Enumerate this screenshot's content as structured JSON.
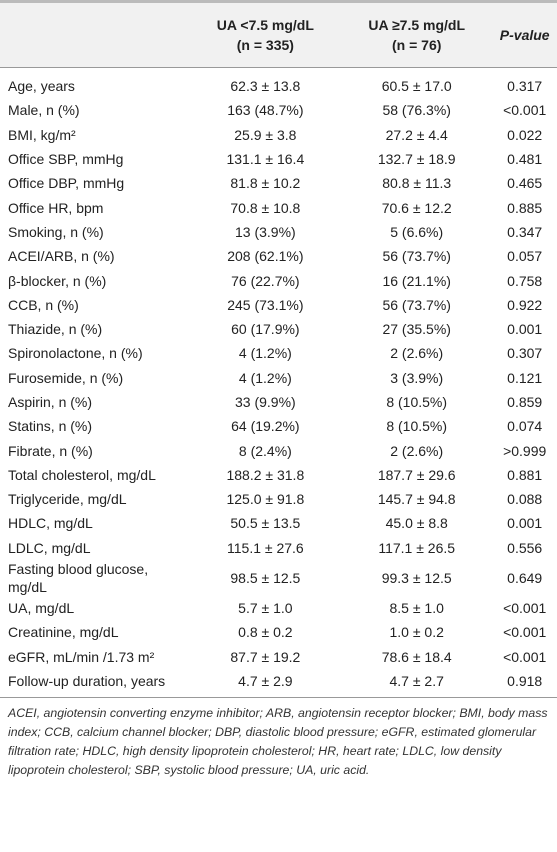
{
  "table": {
    "header": [
      {
        "line1": "UA <7.5 mg/dL",
        "line2": "(n = 335)"
      },
      {
        "line1": "UA ≥7.5 mg/dL",
        "line2": "(n = 76)"
      },
      {
        "line1": "P-value"
      }
    ],
    "rows": [
      [
        "Age, years",
        "62.3 ± 13.8",
        "60.5 ± 17.0",
        "0.317"
      ],
      [
        "Male, n (%)",
        "163 (48.7%)",
        "58 (76.3%)",
        "<0.001"
      ],
      [
        "BMI, kg/m²",
        "25.9 ± 3.8",
        "27.2 ± 4.4",
        "0.022"
      ],
      [
        "Office SBP, mmHg",
        "131.1 ± 16.4",
        "132.7 ± 18.9",
        "0.481"
      ],
      [
        "Office DBP, mmHg",
        "81.8 ± 10.2",
        "80.8 ± 11.3",
        "0.465"
      ],
      [
        "Office HR, bpm",
        "70.8 ± 10.8",
        "70.6 ± 12.2",
        "0.885"
      ],
      [
        "Smoking, n (%)",
        "13 (3.9%)",
        "5 (6.6%)",
        "0.347"
      ],
      [
        "ACEI/ARB, n (%)",
        "208 (62.1%)",
        "56 (73.7%)",
        "0.057"
      ],
      [
        "β-blocker, n (%)",
        "76 (22.7%)",
        "16 (21.1%)",
        "0.758"
      ],
      [
        "CCB, n (%)",
        "245 (73.1%)",
        "56 (73.7%)",
        "0.922"
      ],
      [
        "Thiazide, n (%)",
        "60 (17.9%)",
        "27 (35.5%)",
        "0.001"
      ],
      [
        "Spironolactone, n (%)",
        "4 (1.2%)",
        "2 (2.6%)",
        "0.307"
      ],
      [
        "Furosemide, n (%)",
        "4 (1.2%)",
        "3 (3.9%)",
        "0.121"
      ],
      [
        "Aspirin, n (%)",
        "33 (9.9%)",
        "8 (10.5%)",
        "0.859"
      ],
      [
        "Statins, n (%)",
        "64 (19.2%)",
        "8 (10.5%)",
        "0.074"
      ],
      [
        "Fibrate, n (%)",
        "8 (2.4%)",
        "2 (2.6%)",
        ">0.999"
      ],
      [
        "Total cholesterol, mg/dL",
        "188.2 ± 31.8",
        "187.7 ± 29.6",
        "0.881"
      ],
      [
        "Triglyceride, mg/dL",
        "125.0 ± 91.8",
        "145.7 ± 94.8",
        "0.088"
      ],
      [
        "HDLC, mg/dL",
        "50.5 ± 13.5",
        "45.0 ± 8.8",
        "0.001"
      ],
      [
        "LDLC, mg/dL",
        "115.1 ± 27.6",
        "117.1 ± 26.5",
        "0.556"
      ],
      [
        "Fasting blood glucose, mg/dL",
        "98.5 ± 12.5",
        "99.3 ± 12.5",
        "0.649"
      ],
      [
        "UA, mg/dL",
        "5.7 ± 1.0",
        "8.5 ± 1.0",
        "<0.001"
      ],
      [
        "Creatinine, mg/dL",
        "0.8 ± 0.2",
        "1.0 ± 0.2",
        "<0.001"
      ],
      [
        "eGFR, mL/min /1.73 m²",
        "87.7 ± 19.2",
        "78.6 ± 18.4",
        "<0.001"
      ],
      [
        "Follow-up duration, years",
        "4.7 ± 2.9",
        "4.7 ± 2.7",
        "0.918"
      ]
    ]
  },
  "footnote": "ACEI, angiotensin converting enzyme inhibitor; ARB, angiotensin receptor blocker; BMI, body mass index; CCB, calcium channel blocker; DBP, diastolic blood pressure; eGFR, estimated glomerular filtration rate; HDLC, high density lipoprotein cholesterol; HR, heart rate; LDLC, low density lipoprotein cholesterol; SBP, systolic blood pressure; UA, uric acid."
}
